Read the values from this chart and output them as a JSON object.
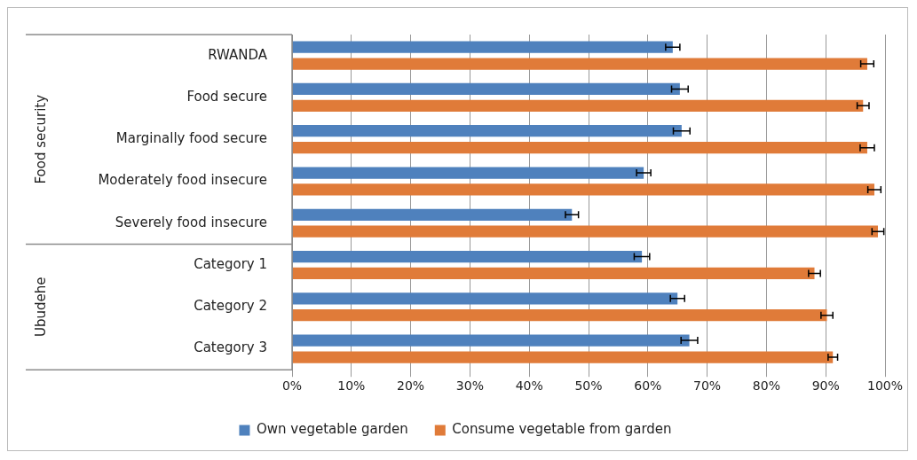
{
  "chart_data": {
    "type": "bar",
    "orientation": "horizontal",
    "categories": [
      "RWANDA",
      "Food secure",
      "Marginally food secure",
      "Moderately food insecure",
      "Severely food insecure",
      "Category 1",
      "Category 2",
      "Category 3"
    ],
    "series": [
      {
        "name": "Own vegetable garden",
        "color": "#4f81bd",
        "values": [
          64.2,
          65.4,
          65.7,
          59.3,
          47.2,
          59,
          65,
          67
        ],
        "errors": [
          1.2,
          1.4,
          1.4,
          1.2,
          1.1,
          1.3,
          1.2,
          1.4
        ]
      },
      {
        "name": "Consume vegetable from garden",
        "color": "#e07b39",
        "values": [
          97,
          96.3,
          97,
          98.2,
          98.8,
          88.1,
          90.2,
          91.2
        ],
        "errors": [
          1.1,
          1,
          1.2,
          1.1,
          1,
          1,
          1,
          0.8
        ]
      }
    ],
    "xlim": [
      0,
      100
    ],
    "xticks": [
      {
        "value": 0,
        "label": "0%"
      },
      {
        "value": 10,
        "label": "10%"
      },
      {
        "value": 20,
        "label": "20%"
      },
      {
        "value": 30,
        "label": "30%"
      },
      {
        "value": 40,
        "label": "40%"
      },
      {
        "value": 50,
        "label": "50%"
      },
      {
        "value": 60,
        "label": "60%"
      },
      {
        "value": 70,
        "label": "70%"
      },
      {
        "value": 80,
        "label": "80%"
      },
      {
        "value": 90,
        "label": "90%"
      },
      {
        "value": 100,
        "label": "100%"
      }
    ],
    "annotations": [
      "Food security",
      "Ubudehe"
    ],
    "grid": "x",
    "legend": "bottom"
  }
}
